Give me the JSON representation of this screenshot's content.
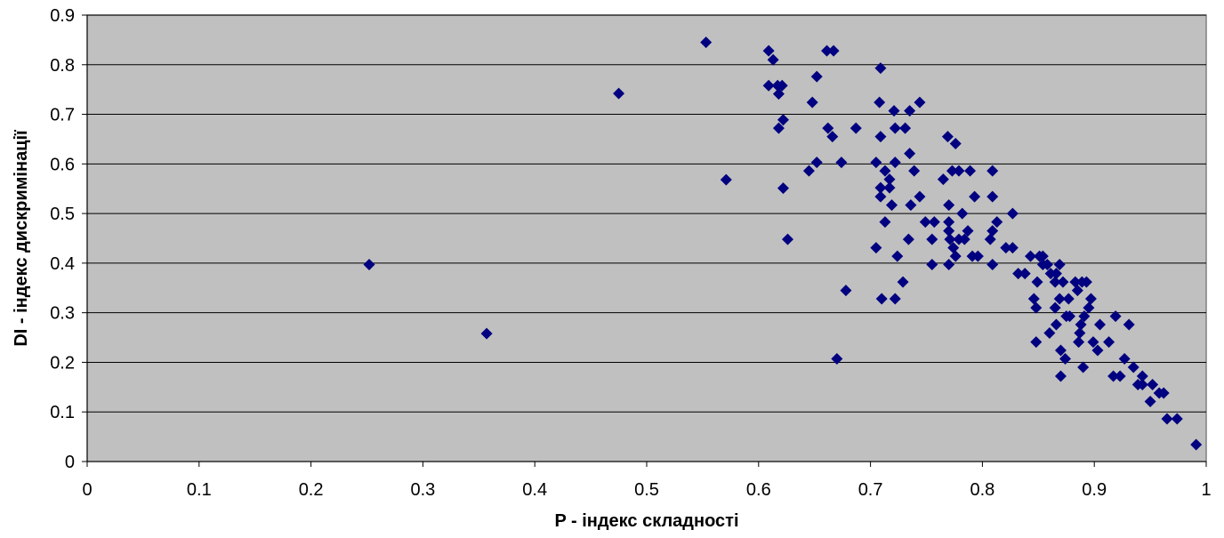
{
  "chart_data": {
    "type": "scatter",
    "title": "",
    "xlabel": "P - індекс складності",
    "ylabel": "DI - індекс дискримінації",
    "xlim": [
      0,
      1
    ],
    "ylim": [
      0,
      0.9
    ],
    "x_ticks": [
      "0",
      "0.1",
      "0.2",
      "0.3",
      "0.4",
      "0.5",
      "0.6",
      "0.7",
      "0.8",
      "0.9",
      "1"
    ],
    "y_ticks": [
      "0",
      "0.1",
      "0.2",
      "0.3",
      "0.4",
      "0.5",
      "0.6",
      "0.7",
      "0.8",
      "0.9"
    ],
    "grid": "horizontal",
    "legend": "none",
    "colors": {
      "plot_background": "#C0C0C0",
      "marker": "#000080",
      "gridline": "#000000"
    },
    "series": [
      {
        "marker": "diamond",
        "points": [
          [
            0.252,
            0.397
          ],
          [
            0.357,
            0.258
          ],
          [
            0.475,
            0.742
          ],
          [
            0.553,
            0.845
          ],
          [
            0.571,
            0.568
          ],
          [
            0.609,
            0.828
          ],
          [
            0.609,
            0.758
          ],
          [
            0.613,
            0.81
          ],
          [
            0.617,
            0.758
          ],
          [
            0.618,
            0.741
          ],
          [
            0.618,
            0.672
          ],
          [
            0.621,
            0.758
          ],
          [
            0.622,
            0.689
          ],
          [
            0.622,
            0.551
          ],
          [
            0.626,
            0.448
          ],
          [
            0.645,
            0.586
          ],
          [
            0.648,
            0.724
          ],
          [
            0.652,
            0.603
          ],
          [
            0.652,
            0.776
          ],
          [
            0.661,
            0.828
          ],
          [
            0.662,
            0.672
          ],
          [
            0.666,
            0.655
          ],
          [
            0.667,
            0.828
          ],
          [
            0.67,
            0.207
          ],
          [
            0.674,
            0.603
          ],
          [
            0.678,
            0.345
          ],
          [
            0.687,
            0.672
          ],
          [
            0.705,
            0.603
          ],
          [
            0.705,
            0.431
          ],
          [
            0.708,
            0.724
          ],
          [
            0.709,
            0.534
          ],
          [
            0.709,
            0.793
          ],
          [
            0.709,
            0.655
          ],
          [
            0.709,
            0.552
          ],
          [
            0.71,
            0.328
          ],
          [
            0.713,
            0.483
          ],
          [
            0.713,
            0.586
          ],
          [
            0.717,
            0.569
          ],
          [
            0.717,
            0.552
          ],
          [
            0.719,
            0.517
          ],
          [
            0.721,
            0.707
          ],
          [
            0.722,
            0.672
          ],
          [
            0.722,
            0.603
          ],
          [
            0.722,
            0.328
          ],
          [
            0.724,
            0.414
          ],
          [
            0.729,
            0.362
          ],
          [
            0.731,
            0.672
          ],
          [
            0.734,
            0.448
          ],
          [
            0.735,
            0.707
          ],
          [
            0.735,
            0.621
          ],
          [
            0.736,
            0.517
          ],
          [
            0.739,
            0.586
          ],
          [
            0.744,
            0.724
          ],
          [
            0.744,
            0.534
          ],
          [
            0.749,
            0.483
          ],
          [
            0.755,
            0.397
          ],
          [
            0.755,
            0.448
          ],
          [
            0.757,
            0.483
          ],
          [
            0.765,
            0.569
          ],
          [
            0.769,
            0.655
          ],
          [
            0.77,
            0.517
          ],
          [
            0.77,
            0.483
          ],
          [
            0.77,
            0.465
          ],
          [
            0.77,
            0.397
          ],
          [
            0.771,
            0.448
          ],
          [
            0.773,
            0.586
          ],
          [
            0.774,
            0.431
          ],
          [
            0.776,
            0.641
          ],
          [
            0.776,
            0.414
          ],
          [
            0.779,
            0.586
          ],
          [
            0.779,
            0.448
          ],
          [
            0.782,
            0.5
          ],
          [
            0.784,
            0.448
          ],
          [
            0.787,
            0.465
          ],
          [
            0.789,
            0.586
          ],
          [
            0.791,
            0.414
          ],
          [
            0.793,
            0.534
          ],
          [
            0.796,
            0.414
          ],
          [
            0.807,
            0.448
          ],
          [
            0.809,
            0.586
          ],
          [
            0.809,
            0.534
          ],
          [
            0.809,
            0.465
          ],
          [
            0.809,
            0.397
          ],
          [
            0.813,
            0.483
          ],
          [
            0.821,
            0.431
          ],
          [
            0.827,
            0.431
          ],
          [
            0.827,
            0.5
          ],
          [
            0.832,
            0.379
          ],
          [
            0.838,
            0.379
          ],
          [
            0.843,
            0.414
          ],
          [
            0.846,
            0.328
          ],
          [
            0.848,
            0.31
          ],
          [
            0.848,
            0.241
          ],
          [
            0.849,
            0.362
          ],
          [
            0.851,
            0.414
          ],
          [
            0.854,
            0.397
          ],
          [
            0.854,
            0.414
          ],
          [
            0.858,
            0.397
          ],
          [
            0.86,
            0.259
          ],
          [
            0.861,
            0.379
          ],
          [
            0.865,
            0.362
          ],
          [
            0.865,
            0.31
          ],
          [
            0.866,
            0.276
          ],
          [
            0.866,
            0.379
          ],
          [
            0.869,
            0.397
          ],
          [
            0.869,
            0.328
          ],
          [
            0.87,
            0.172
          ],
          [
            0.87,
            0.224
          ],
          [
            0.872,
            0.362
          ],
          [
            0.874,
            0.207
          ],
          [
            0.875,
            0.293
          ],
          [
            0.877,
            0.328
          ],
          [
            0.878,
            0.293
          ],
          [
            0.883,
            0.362
          ],
          [
            0.885,
            0.345
          ],
          [
            0.886,
            0.241
          ],
          [
            0.887,
            0.259
          ],
          [
            0.888,
            0.276
          ],
          [
            0.889,
            0.362
          ],
          [
            0.89,
            0.19
          ],
          [
            0.891,
            0.293
          ],
          [
            0.893,
            0.362
          ],
          [
            0.895,
            0.31
          ],
          [
            0.897,
            0.328
          ],
          [
            0.899,
            0.241
          ],
          [
            0.903,
            0.224
          ],
          [
            0.905,
            0.276
          ],
          [
            0.913,
            0.241
          ],
          [
            0.917,
            0.172
          ],
          [
            0.919,
            0.293
          ],
          [
            0.923,
            0.172
          ],
          [
            0.927,
            0.207
          ],
          [
            0.931,
            0.276
          ],
          [
            0.935,
            0.19
          ],
          [
            0.939,
            0.155
          ],
          [
            0.943,
            0.155
          ],
          [
            0.943,
            0.172
          ],
          [
            0.95,
            0.121
          ],
          [
            0.952,
            0.155
          ],
          [
            0.958,
            0.138
          ],
          [
            0.962,
            0.138
          ],
          [
            0.965,
            0.086
          ],
          [
            0.974,
            0.086
          ],
          [
            0.991,
            0.034
          ]
        ]
      }
    ]
  }
}
